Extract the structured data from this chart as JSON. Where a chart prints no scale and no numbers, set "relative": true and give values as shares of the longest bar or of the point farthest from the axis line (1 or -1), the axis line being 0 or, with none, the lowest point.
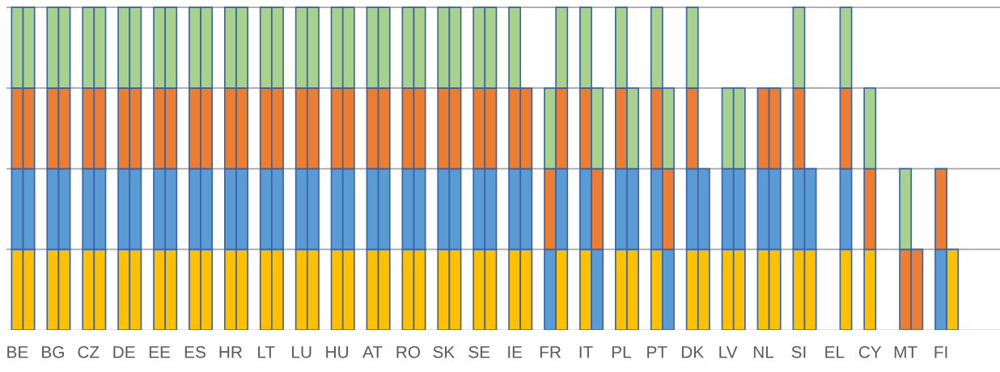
{
  "chart_data": {
    "type": "bar",
    "stacked": true,
    "relative": true,
    "grid": "y",
    "categories": [
      "BE",
      null,
      "BG",
      null,
      "CZ",
      null,
      "DE",
      null,
      "EE",
      null,
      "ES",
      null,
      "HR",
      null,
      "LT",
      null,
      "LU",
      null,
      "HU",
      null,
      "AT",
      null,
      "RO",
      null,
      "SK",
      null,
      "SE",
      null,
      "IE",
      null,
      "FR",
      null,
      "IT",
      null,
      "PL",
      null,
      "PT",
      null,
      "DK",
      null,
      "LV",
      null,
      "NL",
      null,
      "SI",
      null,
      "EL",
      null,
      "CY",
      null,
      "MT",
      null,
      "FI",
      null,
      null,
      null
    ],
    "series": [
      {
        "values": [
          0.25,
          0.25,
          0.25,
          0.25,
          0.25,
          0.25,
          0.25,
          0.25,
          0.25,
          0.25,
          0.25,
          0.25,
          0.25,
          0.25,
          0.25,
          0.25,
          0.25,
          0.25,
          0.25,
          0.25,
          0.25,
          0.25,
          0.25,
          0.25,
          0.25,
          0.25,
          0.25,
          0.25,
          0.25,
          0.25,
          0.25,
          0.25,
          0.25,
          0.25,
          0.25,
          0.25,
          0.25,
          0.25,
          0.25,
          0.25,
          0.25,
          0.25,
          0.25,
          0.25,
          0.25,
          0.25,
          null,
          0.25,
          0.25,
          null,
          0.25,
          0.25,
          0.25,
          0.25,
          null,
          null
        ],
        "colors": [
          "#ffc000",
          "#ffc000",
          "#ffc000",
          "#ffc000",
          "#ffc000",
          "#ffc000",
          "#ffc000",
          "#ffc000",
          "#ffc000",
          "#ffc000",
          "#ffc000",
          "#ffc000",
          "#ffc000",
          "#ffc000",
          "#ffc000",
          "#ffc000",
          "#ffc000",
          "#ffc000",
          "#ffc000",
          "#ffc000",
          "#ffc000",
          "#ffc000",
          "#ffc000",
          "#ffc000",
          "#ffc000",
          "#ffc000",
          "#ffc000",
          "#ffc000",
          "#ffc000",
          "#ffc000",
          "#5b9bd5",
          "#ffc000",
          "#ffc000",
          "#5b9bd5",
          "#ffc000",
          "#ffc000",
          "#ffc000",
          "#5b9bd5",
          "#ffc000",
          "#ffc000",
          "#ffc000",
          "#ffc000",
          "#ffc000",
          "#ffc000",
          "#ffc000",
          "#ffc000",
          null,
          "#ffc000",
          "#ffc000",
          null,
          "#ed7d31",
          "#ed7d31",
          "#5b9bd5",
          "#ffc000",
          null,
          null
        ]
      },
      {
        "values": [
          0.25,
          0.25,
          0.25,
          0.25,
          0.25,
          0.25,
          0.25,
          0.25,
          0.25,
          0.25,
          0.25,
          0.25,
          0.25,
          0.25,
          0.25,
          0.25,
          0.25,
          0.25,
          0.25,
          0.25,
          0.25,
          0.25,
          0.25,
          0.25,
          0.25,
          0.25,
          0.25,
          0.25,
          0.25,
          0.25,
          0.25,
          0.25,
          0.25,
          0.25,
          0.25,
          0.25,
          0.25,
          0.25,
          0.25,
          0.25,
          0.25,
          0.25,
          0.25,
          0.25,
          0.25,
          0.25,
          null,
          0.25,
          0.25,
          null,
          0.25,
          null,
          0.25,
          null,
          null,
          null
        ],
        "colors": [
          "#5b9bd5",
          "#5b9bd5",
          "#5b9bd5",
          "#5b9bd5",
          "#5b9bd5",
          "#5b9bd5",
          "#5b9bd5",
          "#5b9bd5",
          "#5b9bd5",
          "#5b9bd5",
          "#5b9bd5",
          "#5b9bd5",
          "#5b9bd5",
          "#5b9bd5",
          "#5b9bd5",
          "#5b9bd5",
          "#5b9bd5",
          "#5b9bd5",
          "#5b9bd5",
          "#5b9bd5",
          "#5b9bd5",
          "#5b9bd5",
          "#5b9bd5",
          "#5b9bd5",
          "#5b9bd5",
          "#5b9bd5",
          "#5b9bd5",
          "#5b9bd5",
          "#5b9bd5",
          "#5b9bd5",
          "#ed7d31",
          "#5b9bd5",
          "#5b9bd5",
          "#ed7d31",
          "#5b9bd5",
          "#5b9bd5",
          "#5b9bd5",
          "#ed7d31",
          "#5b9bd5",
          "#5b9bd5",
          "#5b9bd5",
          "#5b9bd5",
          "#5b9bd5",
          "#5b9bd5",
          "#5b9bd5",
          "#5b9bd5",
          null,
          "#5b9bd5",
          "#ed7d31",
          null,
          "#a9d18e",
          null,
          "#ed7d31",
          null,
          null,
          null
        ]
      },
      {
        "values": [
          0.25,
          0.25,
          0.25,
          0.25,
          0.25,
          0.25,
          0.25,
          0.25,
          0.25,
          0.25,
          0.25,
          0.25,
          0.25,
          0.25,
          0.25,
          0.25,
          0.25,
          0.25,
          0.25,
          0.25,
          0.25,
          0.25,
          0.25,
          0.25,
          0.25,
          0.25,
          0.25,
          0.25,
          0.25,
          0.25,
          0.25,
          0.25,
          0.25,
          0.25,
          0.25,
          0.25,
          0.25,
          0.25,
          0.25,
          null,
          0.25,
          0.25,
          0.25,
          0.25,
          0.25,
          null,
          null,
          0.25,
          0.25,
          null,
          null,
          null,
          null,
          null,
          null,
          null
        ],
        "colors": [
          "#ed7d31",
          "#ed7d31",
          "#ed7d31",
          "#ed7d31",
          "#ed7d31",
          "#ed7d31",
          "#ed7d31",
          "#ed7d31",
          "#ed7d31",
          "#ed7d31",
          "#ed7d31",
          "#ed7d31",
          "#ed7d31",
          "#ed7d31",
          "#ed7d31",
          "#ed7d31",
          "#ed7d31",
          "#ed7d31",
          "#ed7d31",
          "#ed7d31",
          "#ed7d31",
          "#ed7d31",
          "#ed7d31",
          "#ed7d31",
          "#ed7d31",
          "#ed7d31",
          "#ed7d31",
          "#ed7d31",
          "#ed7d31",
          "#ed7d31",
          "#a9d18e",
          "#ed7d31",
          "#ed7d31",
          "#a9d18e",
          "#ed7d31",
          "#a9d18e",
          "#ed7d31",
          "#a9d18e",
          "#ed7d31",
          null,
          "#a9d18e",
          "#a9d18e",
          "#ed7d31",
          "#ed7d31",
          "#ed7d31",
          null,
          null,
          "#ed7d31",
          "#a9d18e",
          null,
          null,
          null,
          null,
          null,
          null,
          null
        ]
      },
      {
        "values": [
          0.25,
          0.25,
          0.25,
          0.25,
          0.25,
          0.25,
          0.25,
          0.25,
          0.25,
          0.25,
          0.25,
          0.25,
          0.25,
          0.25,
          0.25,
          0.25,
          0.25,
          0.25,
          0.25,
          0.25,
          0.25,
          0.25,
          0.25,
          0.25,
          0.25,
          0.25,
          0.25,
          0.25,
          0.25,
          null,
          null,
          0.25,
          0.25,
          null,
          0.25,
          null,
          0.25,
          null,
          0.25,
          null,
          null,
          null,
          null,
          null,
          0.25,
          null,
          null,
          0.25,
          null,
          null,
          null,
          null,
          null,
          null,
          null,
          null
        ],
        "colors": [
          "#a9d18e",
          "#a9d18e",
          "#a9d18e",
          "#a9d18e",
          "#a9d18e",
          "#a9d18e",
          "#a9d18e",
          "#a9d18e",
          "#a9d18e",
          "#a9d18e",
          "#a9d18e",
          "#a9d18e",
          "#a9d18e",
          "#a9d18e",
          "#a9d18e",
          "#a9d18e",
          "#a9d18e",
          "#a9d18e",
          "#a9d18e",
          "#a9d18e",
          "#a9d18e",
          "#a9d18e",
          "#a9d18e",
          "#a9d18e",
          "#a9d18e",
          "#a9d18e",
          "#a9d18e",
          "#a9d18e",
          "#a9d18e",
          null,
          null,
          "#a9d18e",
          "#a9d18e",
          null,
          "#a9d18e",
          null,
          "#a9d18e",
          null,
          "#a9d18e",
          null,
          null,
          null,
          null,
          null,
          "#a9d18e",
          null,
          null,
          "#a9d18e",
          null,
          null,
          null,
          null,
          null,
          null,
          null,
          null
        ]
      }
    ]
  }
}
